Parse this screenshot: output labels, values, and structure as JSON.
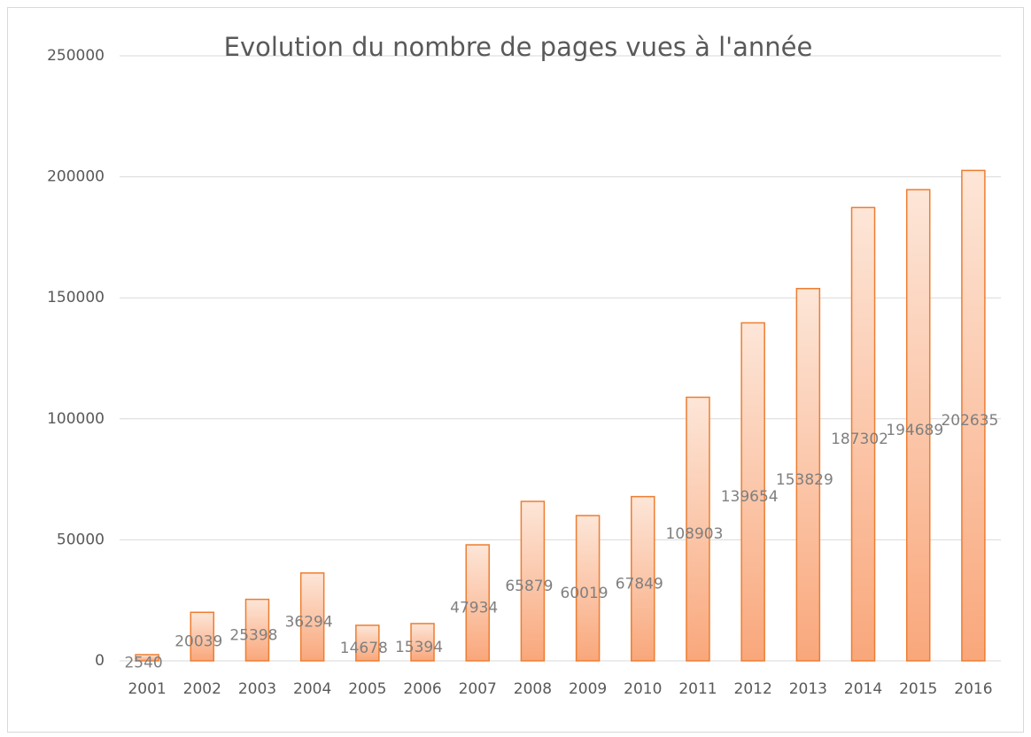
{
  "chart_data": {
    "type": "bar",
    "title": "Evolution du nombre de pages vues à l'année",
    "categories": [
      "2001",
      "2002",
      "2003",
      "2004",
      "2005",
      "2006",
      "2007",
      "2008",
      "2009",
      "2010",
      "2011",
      "2012",
      "2013",
      "2014",
      "2015",
      "2016"
    ],
    "values": [
      2540,
      20039,
      25398,
      36294,
      14678,
      15394,
      47934,
      65879,
      60019,
      67849,
      108903,
      139654,
      153829,
      187302,
      194689,
      202635
    ],
    "color": "#ed7d31",
    "ylim": [
      0,
      250000
    ],
    "yticks": [
      0,
      50000,
      100000,
      150000,
      200000,
      250000
    ],
    "grid": true
  }
}
